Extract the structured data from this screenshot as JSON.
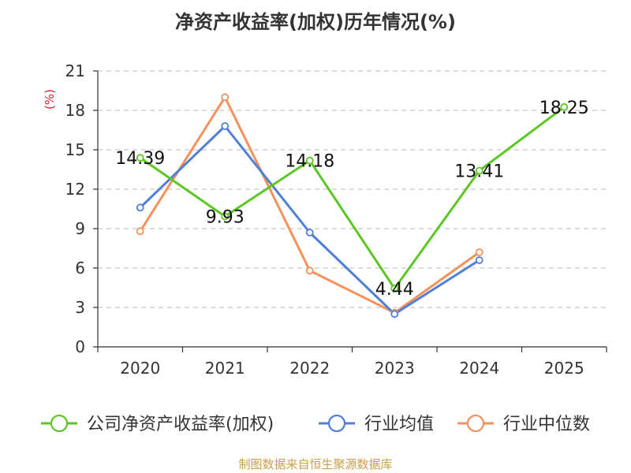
{
  "chart_data": {
    "type": "line",
    "title": "净资产收益率(加权)历年情况(%)",
    "ylabel": "(%)",
    "categories": [
      "2020",
      "2021",
      "2022",
      "2023",
      "2024",
      "2025"
    ],
    "yticks": [
      0,
      3,
      6,
      9,
      12,
      15,
      18,
      21
    ],
    "ylim": [
      0,
      21
    ],
    "grid": true,
    "legend_position": "bottom",
    "series": [
      {
        "name": "公司净资产收益率(加权)",
        "color": "#5cc723",
        "values": [
          14.39,
          9.93,
          14.18,
          4.44,
          13.41,
          18.25
        ],
        "labels": [
          "14.39",
          "9.93",
          "14.18",
          "4.44",
          "13.41",
          "18.25"
        ]
      },
      {
        "name": "行业均值",
        "color": "#4f7fd9",
        "values": [
          10.6,
          16.8,
          8.7,
          2.5,
          6.6,
          null
        ]
      },
      {
        "name": "行业中位数",
        "color": "#f5915a",
        "values": [
          8.8,
          19.0,
          5.8,
          2.6,
          7.2,
          null
        ]
      }
    ]
  },
  "source_note": "制图数据来自恒生聚源数据库"
}
